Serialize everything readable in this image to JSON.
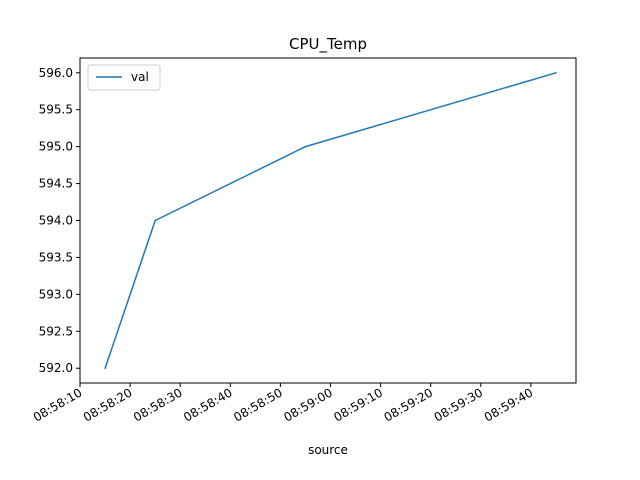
{
  "chart_data": {
    "type": "line",
    "title": "CPU_Temp",
    "xlabel": "source",
    "ylabel": "",
    "legend_position": "top-left",
    "grid": false,
    "x_ticks": [
      "08:58:10",
      "08:58:20",
      "08:58:30",
      "08:58:40",
      "08:58:50",
      "08:59:00",
      "08:59:10",
      "08:59:20",
      "08:59:30",
      "08:59:40"
    ],
    "xlim": [
      "08:58:10",
      "08:59:49"
    ],
    "y_ticks": [
      "592.0",
      "592.5",
      "593.0",
      "593.5",
      "594.0",
      "594.5",
      "595.0",
      "595.5",
      "596.0"
    ],
    "ylim": [
      591.8,
      596.2
    ],
    "series": [
      {
        "name": "val",
        "color": "#1f77b4",
        "x": [
          "08:58:15",
          "08:58:25",
          "08:58:55",
          "08:59:45"
        ],
        "y": [
          592.0,
          594.0,
          595.0,
          596.0
        ]
      }
    ]
  }
}
